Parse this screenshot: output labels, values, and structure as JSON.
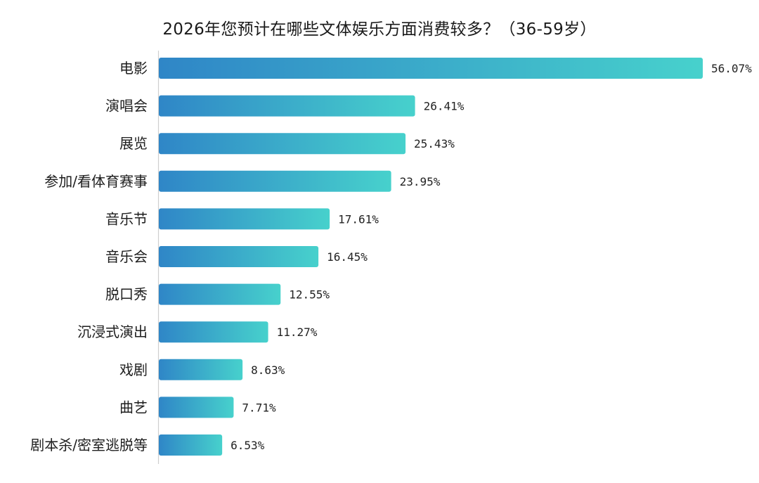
{
  "chart_data": {
    "type": "bar",
    "orientation": "horizontal",
    "title": "2026年您预计在哪些文体娱乐方面消费较多？（36-59岁）",
    "categories": [
      "电影",
      "演唱会",
      "展览",
      "参加/看体育赛事",
      "音乐节",
      "音乐会",
      "脱口秀",
      "沉浸式演出",
      "戏剧",
      "曲艺",
      "剧本杀/密室逃脱等"
    ],
    "values": [
      56.07,
      26.41,
      25.43,
      23.95,
      17.61,
      16.45,
      12.55,
      11.27,
      8.63,
      7.71,
      6.53
    ],
    "value_labels": [
      "56.07%",
      "26.41%",
      "25.43%",
      "23.95%",
      "17.61%",
      "16.45%",
      "12.55%",
      "11.27%",
      "8.63%",
      "7.71%",
      "6.53%"
    ],
    "xlabel": "",
    "ylabel": "",
    "xlim": [
      0,
      56.07
    ],
    "grid": false,
    "legend": "none",
    "colors": {
      "bar_start": "#2f86c7",
      "bar_end": "#47d1cc",
      "axis": "#cfcfcf",
      "text": "#1e1e1e"
    }
  }
}
